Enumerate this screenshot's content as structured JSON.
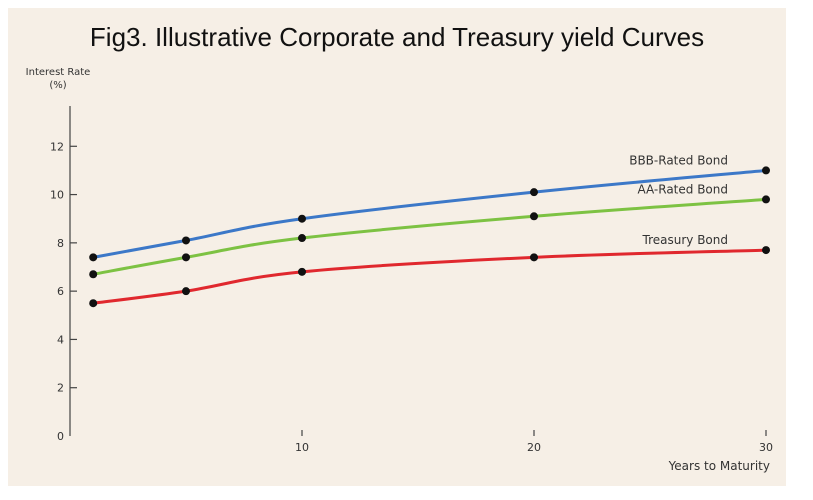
{
  "chart_data": {
    "type": "line",
    "title": "Fig3. Illustrative Corporate and Treasury yield Curves",
    "ylabel": "Interest Rate",
    "ylabel_unit": "(%)",
    "xlabel": "Years to Maturity",
    "xlim": [
      0,
      30
    ],
    "ylim": [
      0,
      14
    ],
    "x_ticks": [
      0,
      10,
      20,
      30
    ],
    "y_ticks": [
      0,
      2,
      4,
      6,
      8,
      10,
      12
    ],
    "grid": false,
    "series": [
      {
        "name": "BBB-Rated Bond",
        "color": "#3c78c8",
        "x": [
          1,
          5,
          10,
          20,
          30
        ],
        "y": [
          7.4,
          8.1,
          9.0,
          10.1,
          11.0
        ]
      },
      {
        "name": "AA-Rated Bond",
        "color": "#7dc243",
        "x": [
          1,
          5,
          10,
          20,
          30
        ],
        "y": [
          6.7,
          7.4,
          8.2,
          9.1,
          9.8
        ]
      },
      {
        "name": "Treasury Bond",
        "color": "#e0282e",
        "x": [
          1,
          5,
          10,
          20,
          30
        ],
        "y": [
          5.5,
          6.0,
          6.8,
          7.4,
          7.7
        ]
      }
    ]
  }
}
